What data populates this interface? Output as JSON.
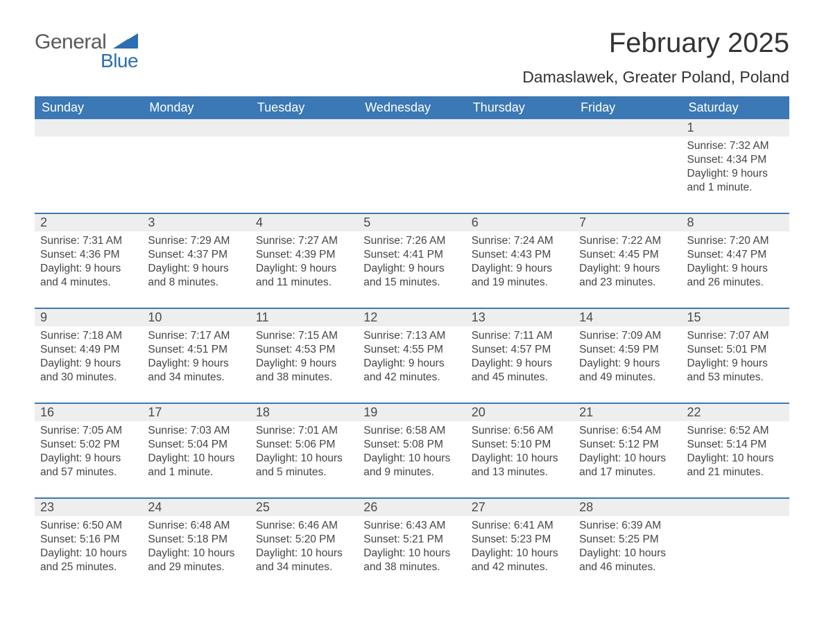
{
  "logo": {
    "line1": "General",
    "line2": "Blue"
  },
  "title": "February 2025",
  "location": "Damaslawek, Greater Poland, Poland",
  "colors": {
    "header_blue": "#3b78b5",
    "row_divider": "#3b78b5",
    "cell_header_bg": "#eeeeee",
    "text_dark": "#323232",
    "logo_gray": "#5a5a5a",
    "logo_blue": "#2b6eb3",
    "background": "#ffffff"
  },
  "typography": {
    "title_fontsize": 40,
    "location_fontsize": 23,
    "weekday_fontsize": 18,
    "daynum_fontsize": 18,
    "body_fontsize": 15.5,
    "font_family": "Segoe UI"
  },
  "weekdays": [
    "Sunday",
    "Monday",
    "Tuesday",
    "Wednesday",
    "Thursday",
    "Friday",
    "Saturday"
  ],
  "weeks": [
    [
      null,
      null,
      null,
      null,
      null,
      null,
      {
        "n": "1",
        "sunrise": "7:32 AM",
        "sunset": "4:34 PM",
        "daylight": "9 hours and 1 minute."
      }
    ],
    [
      {
        "n": "2",
        "sunrise": "7:31 AM",
        "sunset": "4:36 PM",
        "daylight": "9 hours and 4 minutes."
      },
      {
        "n": "3",
        "sunrise": "7:29 AM",
        "sunset": "4:37 PM",
        "daylight": "9 hours and 8 minutes."
      },
      {
        "n": "4",
        "sunrise": "7:27 AM",
        "sunset": "4:39 PM",
        "daylight": "9 hours and 11 minutes."
      },
      {
        "n": "5",
        "sunrise": "7:26 AM",
        "sunset": "4:41 PM",
        "daylight": "9 hours and 15 minutes."
      },
      {
        "n": "6",
        "sunrise": "7:24 AM",
        "sunset": "4:43 PM",
        "daylight": "9 hours and 19 minutes."
      },
      {
        "n": "7",
        "sunrise": "7:22 AM",
        "sunset": "4:45 PM",
        "daylight": "9 hours and 23 minutes."
      },
      {
        "n": "8",
        "sunrise": "7:20 AM",
        "sunset": "4:47 PM",
        "daylight": "9 hours and 26 minutes."
      }
    ],
    [
      {
        "n": "9",
        "sunrise": "7:18 AM",
        "sunset": "4:49 PM",
        "daylight": "9 hours and 30 minutes."
      },
      {
        "n": "10",
        "sunrise": "7:17 AM",
        "sunset": "4:51 PM",
        "daylight": "9 hours and 34 minutes."
      },
      {
        "n": "11",
        "sunrise": "7:15 AM",
        "sunset": "4:53 PM",
        "daylight": "9 hours and 38 minutes."
      },
      {
        "n": "12",
        "sunrise": "7:13 AM",
        "sunset": "4:55 PM",
        "daylight": "9 hours and 42 minutes."
      },
      {
        "n": "13",
        "sunrise": "7:11 AM",
        "sunset": "4:57 PM",
        "daylight": "9 hours and 45 minutes."
      },
      {
        "n": "14",
        "sunrise": "7:09 AM",
        "sunset": "4:59 PM",
        "daylight": "9 hours and 49 minutes."
      },
      {
        "n": "15",
        "sunrise": "7:07 AM",
        "sunset": "5:01 PM",
        "daylight": "9 hours and 53 minutes."
      }
    ],
    [
      {
        "n": "16",
        "sunrise": "7:05 AM",
        "sunset": "5:02 PM",
        "daylight": "9 hours and 57 minutes."
      },
      {
        "n": "17",
        "sunrise": "7:03 AM",
        "sunset": "5:04 PM",
        "daylight": "10 hours and 1 minute."
      },
      {
        "n": "18",
        "sunrise": "7:01 AM",
        "sunset": "5:06 PM",
        "daylight": "10 hours and 5 minutes."
      },
      {
        "n": "19",
        "sunrise": "6:58 AM",
        "sunset": "5:08 PM",
        "daylight": "10 hours and 9 minutes."
      },
      {
        "n": "20",
        "sunrise": "6:56 AM",
        "sunset": "5:10 PM",
        "daylight": "10 hours and 13 minutes."
      },
      {
        "n": "21",
        "sunrise": "6:54 AM",
        "sunset": "5:12 PM",
        "daylight": "10 hours and 17 minutes."
      },
      {
        "n": "22",
        "sunrise": "6:52 AM",
        "sunset": "5:14 PM",
        "daylight": "10 hours and 21 minutes."
      }
    ],
    [
      {
        "n": "23",
        "sunrise": "6:50 AM",
        "sunset": "5:16 PM",
        "daylight": "10 hours and 25 minutes."
      },
      {
        "n": "24",
        "sunrise": "6:48 AM",
        "sunset": "5:18 PM",
        "daylight": "10 hours and 29 minutes."
      },
      {
        "n": "25",
        "sunrise": "6:46 AM",
        "sunset": "5:20 PM",
        "daylight": "10 hours and 34 minutes."
      },
      {
        "n": "26",
        "sunrise": "6:43 AM",
        "sunset": "5:21 PM",
        "daylight": "10 hours and 38 minutes."
      },
      {
        "n": "27",
        "sunrise": "6:41 AM",
        "sunset": "5:23 PM",
        "daylight": "10 hours and 42 minutes."
      },
      {
        "n": "28",
        "sunrise": "6:39 AM",
        "sunset": "5:25 PM",
        "daylight": "10 hours and 46 minutes."
      },
      null
    ]
  ],
  "labels": {
    "sunrise_prefix": "Sunrise: ",
    "sunset_prefix": "Sunset: ",
    "daylight_prefix": "Daylight: "
  }
}
